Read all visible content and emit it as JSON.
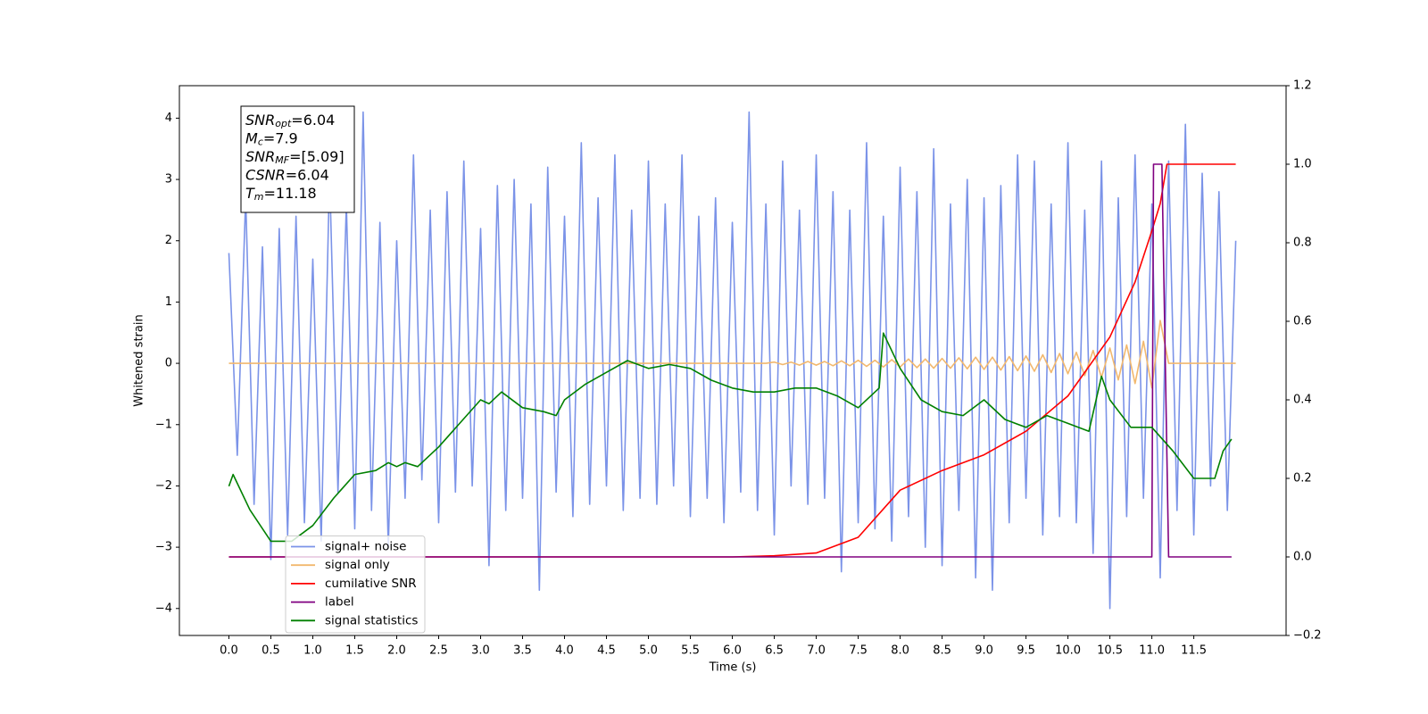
{
  "chart_data": {
    "type": "line",
    "xlabel": "Time (s)",
    "ylabel": "Whitened strain",
    "xlim": [
      -0.59,
      12.6
    ],
    "ylim": [
      -4.44,
      4.53
    ],
    "y2lim": [
      -0.2,
      1.2
    ],
    "xticks": [
      {
        "value": 0,
        "label": "0.0"
      },
      0.5,
      {
        "value": 1,
        "label": "1.0"
      },
      1.5,
      {
        "value": 2,
        "label": "2.0"
      },
      2.5,
      {
        "value": 3,
        "label": "3.0"
      },
      3.5,
      {
        "value": 4,
        "label": "4.0"
      },
      4.5,
      {
        "value": 5,
        "label": "5.0"
      },
      5.5,
      {
        "value": 6,
        "label": "6.0"
      },
      6.5,
      {
        "value": 7,
        "label": "7.0"
      },
      7.5,
      {
        "value": 8,
        "label": "8.0"
      },
      8.5,
      {
        "value": 9,
        "label": "9.0"
      },
      9.5,
      {
        "value": 10,
        "label": "10.0"
      },
      10.5,
      {
        "value": 11,
        "label": "11.0"
      },
      11.5
    ],
    "yticks": [
      {
        "value": -4,
        "label": "−4"
      },
      {
        "value": -3,
        "label": "−3"
      },
      {
        "value": -2,
        "label": "−2"
      },
      {
        "value": -1,
        "label": "−1"
      },
      0,
      1,
      2,
      3,
      4
    ],
    "y2ticks": [
      {
        "value": -0.2,
        "label": "−0.2"
      },
      {
        "value": 0,
        "label": "0.0"
      },
      0.2,
      0.4,
      0.6,
      0.8,
      {
        "value": 1,
        "label": "1.0"
      },
      1.2
    ],
    "legend_loc": "lower left",
    "annotations": [
      {
        "symbol": "SNR",
        "subscript": "opt",
        "text": "=6.04"
      },
      {
        "symbol": "M",
        "subscript": "c",
        "text": "=7.9"
      },
      {
        "symbol": "SNR",
        "subscript": "MF",
        "text": "=[5.09]"
      },
      {
        "symbol": "CSNR",
        "text": "=6.04"
      },
      {
        "symbol": "T",
        "subscript": "m",
        "text": "=11.18"
      }
    ],
    "x": [
      0,
      0.1,
      0.2,
      0.3,
      0.4,
      0.5,
      0.6,
      0.7,
      0.8,
      0.9,
      1,
      1.1,
      1.2,
      1.3,
      1.4,
      1.5,
      1.6,
      1.7,
      1.8,
      1.9,
      2,
      2.1,
      2.2,
      2.3,
      2.4,
      2.5,
      2.6,
      2.7,
      2.8,
      2.9,
      3,
      3.1,
      3.2,
      3.3,
      3.4,
      3.5,
      3.6,
      3.7,
      3.8,
      3.9,
      4,
      4.1,
      4.2,
      4.3,
      4.4,
      4.5,
      4.6,
      4.7,
      4.8,
      4.9,
      5,
      5.1,
      5.2,
      5.3,
      5.4,
      5.5,
      5.6,
      5.7,
      5.8,
      5.9,
      6,
      6.1,
      6.2,
      6.3,
      6.4,
      6.5,
      6.6,
      6.7,
      6.8,
      6.9,
      7,
      7.1,
      7.2,
      7.3,
      7.4,
      7.5,
      7.6,
      7.7,
      7.8,
      7.9,
      8,
      8.1,
      8.2,
      8.3,
      8.4,
      8.5,
      8.6,
      8.7,
      8.8,
      8.9,
      9,
      9.1,
      9.2,
      9.3,
      9.4,
      9.5,
      9.6,
      9.7,
      9.8,
      9.9,
      10,
      10.1,
      10.2,
      10.3,
      10.4,
      10.5,
      10.6,
      10.7,
      10.8,
      10.9,
      11,
      11.1,
      11.2,
      11.3,
      11.4,
      11.5,
      11.6,
      11.7,
      11.8,
      11.9,
      12
    ],
    "series": [
      {
        "name": "signal+ noise",
        "color": "#7b93e8",
        "values": [
          1.8,
          -1.5,
          2.7,
          -2.3,
          1.9,
          -3.2,
          2.2,
          -2.8,
          2.4,
          -2.6,
          1.7,
          -2.9,
          3.1,
          -2.1,
          2.6,
          -2.7,
          4.1,
          -2.4,
          2.3,
          -3.0,
          2.0,
          -2.2,
          3.4,
          -1.9,
          2.5,
          -2.6,
          2.8,
          -2.1,
          3.3,
          -2.0,
          2.2,
          -3.3,
          2.9,
          -2.4,
          3.0,
          -2.2,
          2.6,
          -3.7,
          3.2,
          -2.1,
          2.4,
          -2.5,
          3.6,
          -2.3,
          2.7,
          -2.0,
          3.4,
          -2.4,
          2.5,
          -2.2,
          3.3,
          -2.3,
          2.6,
          -2.0,
          3.4,
          -2.5,
          2.4,
          -2.2,
          2.7,
          -2.6,
          2.3,
          -2.1,
          4.1,
          -2.4,
          2.6,
          -2.8,
          3.3,
          -2.0,
          2.5,
          -2.3,
          3.4,
          -2.2,
          2.8,
          -3.4,
          2.5,
          -2.6,
          3.6,
          -2.7,
          2.4,
          -2.9,
          3.2,
          -2.5,
          2.8,
          -3.0,
          3.5,
          -3.3,
          2.6,
          -2.4,
          3.0,
          -3.5,
          2.7,
          -3.7,
          2.9,
          -2.6,
          3.4,
          -2.2,
          3.3,
          -2.8,
          2.6,
          -2.5,
          3.6,
          -2.6,
          2.5,
          -3.1,
          3.3,
          -4.0,
          2.7,
          -2.5,
          3.4,
          -2.2,
          2.6,
          -3.5,
          3.3,
          -2.4,
          3.9,
          -2.8,
          3.1,
          -2.0,
          2.8,
          -2.4,
          2.0
        ]
      },
      {
        "name": "signal only",
        "color": "#f2b86e",
        "values": [
          0,
          0,
          0,
          0,
          0,
          0,
          0,
          0,
          0,
          0,
          0,
          0,
          0,
          0,
          0,
          0,
          0,
          0,
          0,
          0,
          0,
          0,
          0,
          0,
          0,
          0,
          0,
          0,
          0,
          0,
          0,
          0,
          0,
          0,
          0,
          0,
          0,
          0,
          0,
          0,
          0,
          0,
          0,
          0,
          0,
          0,
          0,
          0,
          0,
          0,
          0,
          0,
          0,
          0,
          0,
          0,
          0,
          0,
          0,
          0,
          0,
          0,
          0,
          0,
          0,
          0.02,
          -0.02,
          0.02,
          -0.03,
          0.03,
          -0.03,
          0.03,
          -0.04,
          0.04,
          -0.04,
          0.05,
          -0.05,
          0.05,
          -0.06,
          0.06,
          -0.06,
          0.07,
          -0.07,
          0.07,
          -0.08,
          0.08,
          -0.08,
          0.09,
          -0.09,
          0.1,
          -0.1,
          0.1,
          -0.11,
          0.11,
          -0.12,
          0.12,
          -0.13,
          0.14,
          -0.15,
          0.16,
          -0.17,
          0.18,
          -0.2,
          0.21,
          -0.23,
          0.25,
          -0.27,
          0.3,
          -0.33,
          0.36,
          -0.4,
          0.7,
          0,
          0,
          0,
          0,
          0,
          0,
          0,
          0,
          0
        ]
      },
      {
        "name": "cumilative SNR",
        "color": "#ff0000",
        "axis": "y2",
        "x": [
          0,
          6.0,
          6.5,
          7.0,
          7.5,
          8.0,
          8.5,
          9.0,
          9.5,
          10.0,
          10.5,
          10.8,
          11.0,
          11.1,
          11.18,
          12.0
        ],
        "values": [
          0,
          0,
          0.003,
          0.01,
          0.05,
          0.17,
          0.22,
          0.26,
          0.32,
          0.41,
          0.56,
          0.7,
          0.83,
          0.9,
          1,
          1
        ]
      },
      {
        "name": "label",
        "color": "#800080",
        "axis": "y2",
        "x": [
          0,
          11.0,
          11.02,
          11.12,
          11.2,
          11.95
        ],
        "values": [
          0,
          0,
          1,
          1,
          0,
          0
        ]
      },
      {
        "name": "signal statistics",
        "color": "#008000",
        "axis": "y2",
        "x": [
          0,
          0.05,
          0.25,
          0.5,
          0.75,
          1.0,
          1.25,
          1.5,
          1.75,
          1.9,
          2.0,
          2.1,
          2.25,
          2.5,
          2.75,
          3.0,
          3.1,
          3.25,
          3.5,
          3.75,
          3.9,
          4.0,
          4.25,
          4.5,
          4.75,
          5.0,
          5.25,
          5.5,
          5.75,
          6.0,
          6.25,
          6.5,
          6.75,
          7.0,
          7.25,
          7.5,
          7.75,
          7.8,
          8.0,
          8.25,
          8.5,
          8.75,
          9.0,
          9.25,
          9.5,
          9.75,
          10.0,
          10.25,
          10.4,
          10.5,
          10.75,
          11.0,
          11.25,
          11.5,
          11.75,
          11.85,
          11.95
        ],
        "values": [
          0.18,
          0.21,
          0.12,
          0.04,
          0.04,
          0.08,
          0.15,
          0.21,
          0.22,
          0.24,
          0.23,
          0.24,
          0.23,
          0.28,
          0.34,
          0.4,
          0.39,
          0.42,
          0.38,
          0.37,
          0.36,
          0.4,
          0.44,
          0.47,
          0.5,
          0.48,
          0.49,
          0.48,
          0.45,
          0.43,
          0.42,
          0.42,
          0.43,
          0.43,
          0.41,
          0.38,
          0.43,
          0.57,
          0.48,
          0.4,
          0.37,
          0.36,
          0.4,
          0.35,
          0.33,
          0.36,
          0.34,
          0.32,
          0.46,
          0.4,
          0.33,
          0.33,
          0.27,
          0.2,
          0.2,
          0.27,
          0.3
        ]
      }
    ]
  }
}
